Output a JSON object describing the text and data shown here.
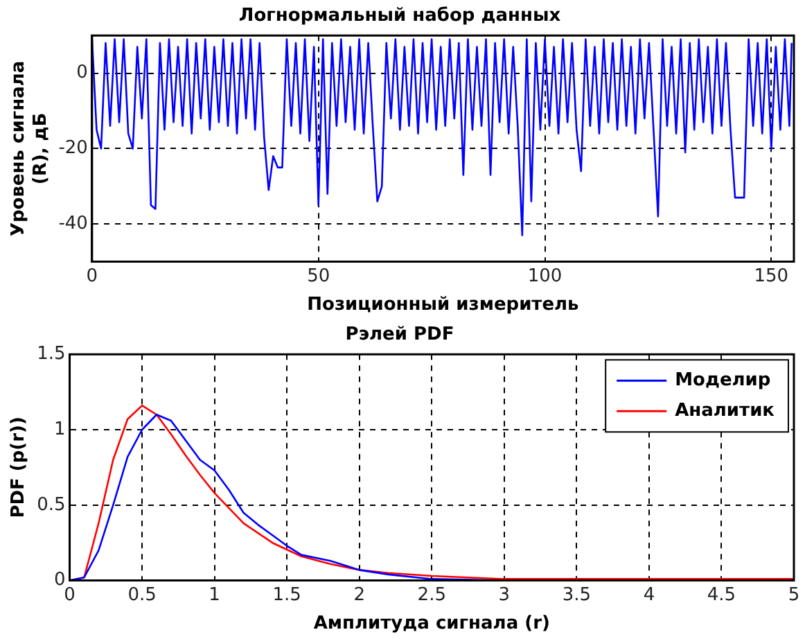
{
  "chart_data": [
    {
      "type": "line",
      "title": "Логнормальный набор данных",
      "xlabel": "Позиционный измеритель",
      "ylabel": "Уровень сигнала (R), дБ",
      "xlim": [
        0,
        155
      ],
      "xticks": [
        0,
        50,
        100,
        150
      ],
      "ylim": [
        -50,
        10
      ],
      "yticks": [
        -40,
        -20,
        0
      ],
      "grid": true,
      "line_style": "solid",
      "legend": false,
      "series": [
        {
          "color": "#0000ff",
          "x": [
            0,
            1,
            2,
            3,
            4,
            5,
            6,
            7,
            8,
            9,
            10,
            11,
            12,
            13,
            14,
            15,
            16,
            17,
            18,
            19,
            20,
            21,
            22,
            23,
            24,
            25,
            26,
            27,
            28,
            29,
            30,
            31,
            32,
            33,
            34,
            35,
            36,
            37,
            38,
            39,
            40,
            41,
            42,
            43,
            44,
            45,
            46,
            47,
            48,
            49,
            50,
            51,
            52,
            53,
            54,
            55,
            56,
            57,
            58,
            59,
            60,
            61,
            62,
            63,
            64,
            65,
            66,
            67,
            68,
            69,
            70,
            71,
            72,
            73,
            74,
            75,
            76,
            77,
            78,
            79,
            80,
            81,
            82,
            83,
            84,
            85,
            86,
            87,
            88,
            89,
            90,
            91,
            92,
            93,
            94,
            95,
            96,
            97,
            98,
            99,
            100,
            101,
            102,
            103,
            104,
            105,
            106,
            107,
            108,
            109,
            110,
            111,
            112,
            113,
            114,
            115,
            116,
            117,
            118,
            119,
            120,
            121,
            122,
            123,
            124,
            125,
            126,
            127,
            128,
            129,
            130,
            131,
            132,
            133,
            134,
            135,
            136,
            137,
            138,
            139,
            140,
            141,
            142,
            143,
            144,
            145,
            146,
            147,
            148,
            149,
            150,
            151,
            152,
            153,
            154,
            154.5
          ],
          "values": [
            9,
            -15,
            -20,
            8,
            -14,
            9,
            -13,
            9,
            -16,
            -20,
            7,
            -12,
            9,
            -35,
            -36,
            8,
            -15,
            9,
            -13,
            7,
            -14,
            9,
            -16,
            8,
            -12,
            9,
            -15,
            7,
            -13,
            9,
            -14,
            8,
            -16,
            9,
            -12,
            9,
            -15,
            8,
            -17,
            -31,
            -22,
            -25,
            -25,
            9,
            -14,
            8,
            -16,
            9,
            -18,
            7,
            -35,
            9,
            -32,
            8,
            -14,
            9,
            -13,
            7,
            -15,
            9,
            -16,
            8,
            -14,
            -34,
            -30,
            8,
            -12,
            9,
            -15,
            7,
            -14,
            9,
            -16,
            8,
            -13,
            9,
            -15,
            7,
            -14,
            9,
            -12,
            8,
            -27,
            9,
            -15,
            7,
            -14,
            9,
            -27,
            8,
            -13,
            9,
            -16,
            7,
            -14,
            -43,
            9,
            -34,
            8,
            -15,
            9,
            -14,
            7,
            -16,
            9,
            -13,
            8,
            -15,
            -26,
            9,
            -14,
            7,
            -16,
            9,
            -13,
            8,
            -15,
            9,
            -14,
            7,
            -16,
            9,
            -12,
            8,
            -15,
            -38,
            9,
            -14,
            7,
            -16,
            9,
            -21,
            8,
            -15,
            9,
            -13,
            7,
            -16,
            9,
            -14,
            8,
            -15,
            -33,
            -33,
            -33,
            9,
            -14,
            8,
            -16,
            9,
            -20,
            7,
            -15,
            9,
            -14,
            8
          ]
        }
      ]
    },
    {
      "type": "line",
      "title": "Рэлей PDF",
      "xlabel": "Амплитуда сигнала (r)",
      "ylabel": "PDF (p(r))",
      "xlim": [
        0,
        5
      ],
      "xticks": [
        0,
        0.5,
        1,
        1.5,
        2,
        2.5,
        3,
        3.5,
        4,
        4.5,
        5
      ],
      "ylim": [
        0,
        1.5
      ],
      "yticks": [
        0,
        0.5,
        1,
        1.5
      ],
      "grid": true,
      "line_style": "solid",
      "legend": "top right",
      "series": [
        {
          "name": "Моделир",
          "color": "#0000ff",
          "x": [
            0,
            0.1,
            0.2,
            0.3,
            0.4,
            0.5,
            0.6,
            0.7,
            0.8,
            0.9,
            1,
            1.1,
            1.2,
            1.3,
            1.4,
            1.5,
            1.6,
            1.8,
            2,
            2.2,
            2.5,
            3
          ],
          "values": [
            0,
            0.02,
            0.2,
            0.5,
            0.82,
            1,
            1.1,
            1.06,
            0.93,
            0.8,
            0.73,
            0.6,
            0.45,
            0.37,
            0.3,
            0.23,
            0.17,
            0.13,
            0.07,
            0.04,
            0.01,
            0
          ]
        },
        {
          "name": "Аналитик",
          "color": "#ff0000",
          "x": [
            0,
            0.1,
            0.2,
            0.3,
            0.4,
            0.5,
            0.6,
            0.7,
            0.8,
            0.9,
            1,
            1.2,
            1.4,
            1.6,
            1.8,
            2,
            2.2,
            2.5,
            3,
            4,
            5
          ],
          "values": [
            0,
            0.02,
            0.38,
            0.8,
            1.07,
            1.16,
            1.1,
            0.97,
            0.83,
            0.7,
            0.58,
            0.38,
            0.25,
            0.16,
            0.11,
            0.07,
            0.05,
            0.03,
            0.01,
            0.01,
            0.01
          ]
        }
      ]
    }
  ]
}
